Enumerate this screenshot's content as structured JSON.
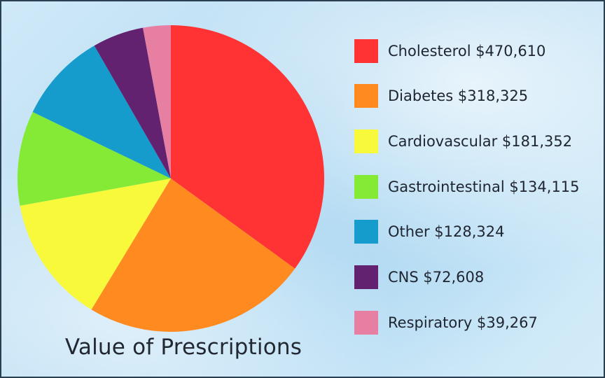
{
  "chart_data": {
    "type": "pie",
    "title": "Value of Prescriptions",
    "categories": [
      "Cholesterol",
      "Diabetes",
      "Cardiovascular",
      "Gastrointestinal",
      "Other",
      "CNS",
      "Respiratory"
    ],
    "values": [
      470610,
      318325,
      181352,
      134115,
      128324,
      72608,
      39267
    ],
    "colors": [
      "#ff3333",
      "#ff8a1f",
      "#f9f93c",
      "#84ea36",
      "#169bcd",
      "#62226f",
      "#e77fa3"
    ],
    "legend_labels": [
      "Cholesterol $470,610",
      "Diabetes $318,325",
      "Cardiovascular $181,352",
      "Gastrointestinal $134,115",
      "Other $128,324",
      "CNS $72,608",
      "Respiratory $39,267"
    ],
    "legend_position": "right"
  }
}
